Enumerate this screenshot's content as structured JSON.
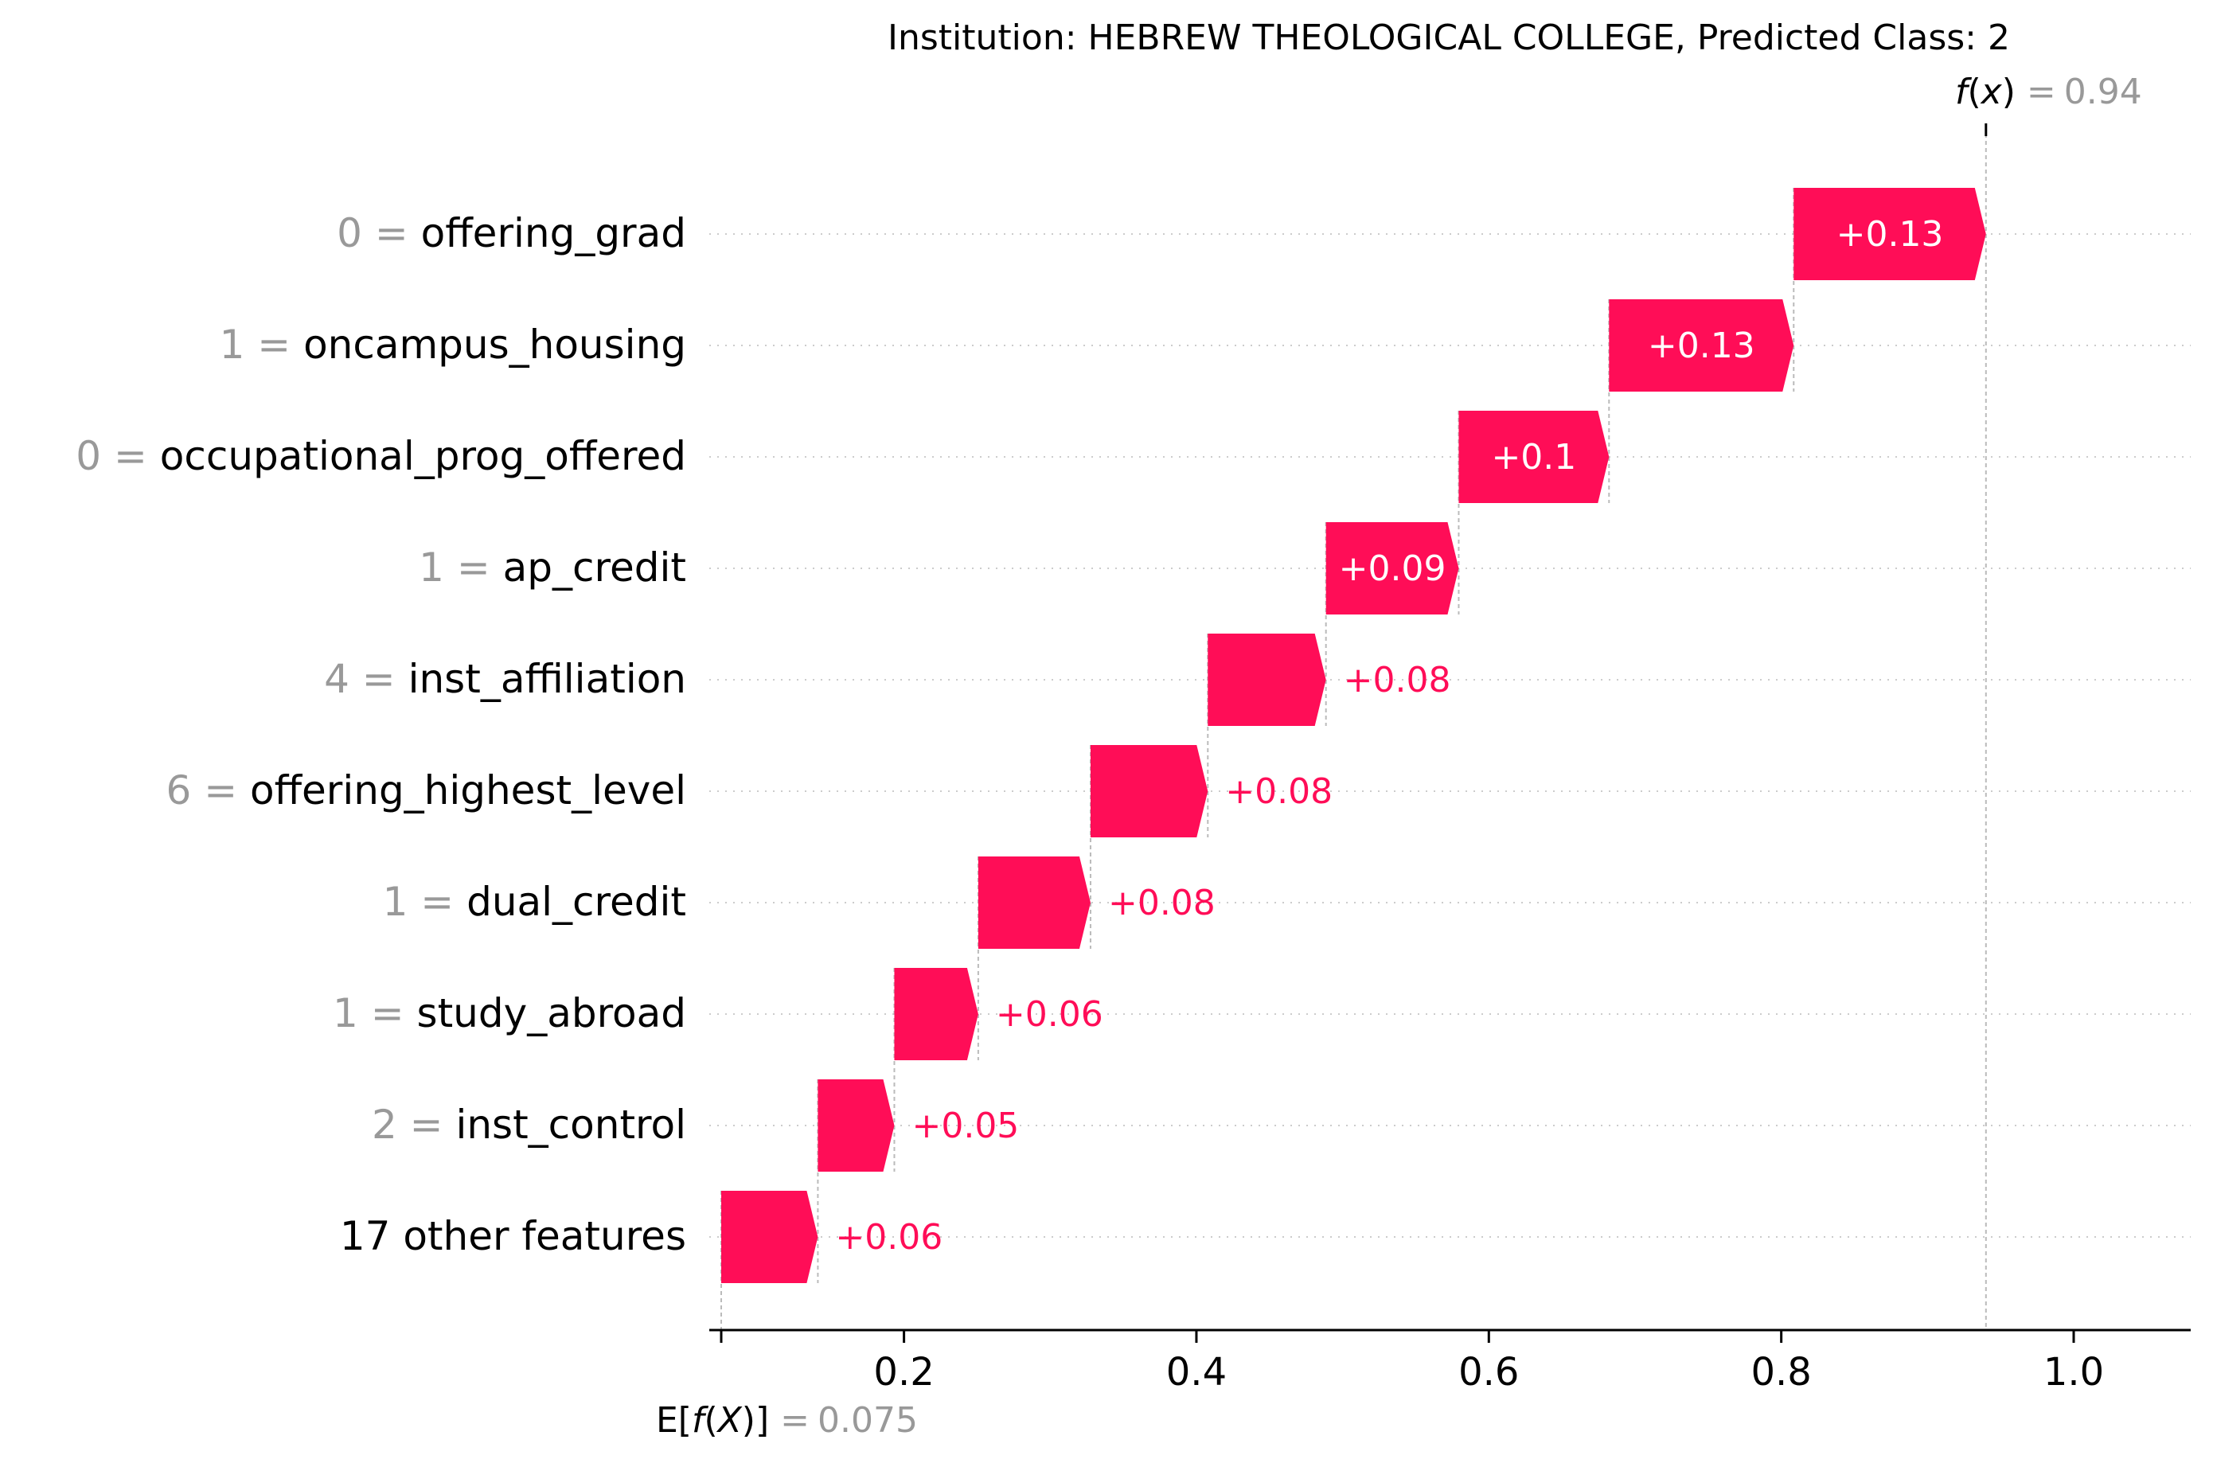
{
  "chart_data": {
    "type": "bar",
    "subtype": "waterfall",
    "title": "Institution: HEBREW THEOLOGICAL COLLEGE, Predicted Class: 2",
    "fx": {
      "prefix": "f",
      "var": "x",
      "eq": "=",
      "value": "0.94",
      "x": 0.94
    },
    "base": {
      "label_pre": "E[",
      "label_f": "f",
      "label_var": "X",
      "label_post": "]",
      "eq": "=",
      "value": "0.075",
      "x": 0.075
    },
    "xlim": [
      0.06,
      1.08
    ],
    "xticks": [
      {
        "x": 0.2,
        "label": "0.2"
      },
      {
        "x": 0.4,
        "label": "0.4"
      },
      {
        "x": 0.6,
        "label": "0.6"
      },
      {
        "x": 0.8,
        "label": "0.8"
      },
      {
        "x": 1.0,
        "label": "1.0"
      }
    ],
    "features": [
      {
        "value": "0",
        "name": "offering_grad",
        "start": 0.8085,
        "end": 0.94,
        "label": "+0.13",
        "label_inside": true
      },
      {
        "value": "1",
        "name": "oncampus_housing",
        "start": 0.6822,
        "end": 0.8085,
        "label": "+0.13",
        "label_inside": true
      },
      {
        "value": "0",
        "name": "occupational_prog_offered",
        "start": 0.5794,
        "end": 0.6822,
        "label": "+0.1",
        "label_inside": true
      },
      {
        "value": "1",
        "name": "ap_credit",
        "start": 0.4886,
        "end": 0.5794,
        "label": "+0.09",
        "label_inside": true
      },
      {
        "value": "4",
        "name": "inst_affiliation",
        "start": 0.4078,
        "end": 0.4886,
        "label": "+0.08",
        "label_inside": false
      },
      {
        "value": "6",
        "name": "offering_highest_level",
        "start": 0.3276,
        "end": 0.4078,
        "label": "+0.08",
        "label_inside": false
      },
      {
        "value": "1",
        "name": "dual_credit",
        "start": 0.2508,
        "end": 0.3276,
        "label": "+0.08",
        "label_inside": false
      },
      {
        "value": "1",
        "name": "study_abroad",
        "start": 0.1934,
        "end": 0.2508,
        "label": "+0.06",
        "label_inside": false
      },
      {
        "value": "2",
        "name": "inst_control",
        "start": 0.1411,
        "end": 0.1934,
        "label": "+0.05",
        "label_inside": false
      },
      {
        "value": "",
        "name": "17 other features",
        "start": 0.075,
        "end": 0.1411,
        "label": "+0.06",
        "label_inside": false
      }
    ],
    "colors": {
      "positive": "#ff0d57",
      "feature_value": "#999999",
      "text": "#000000",
      "grid": "#cccccc",
      "dashed": "#bbbbbb"
    },
    "grid": true
  }
}
